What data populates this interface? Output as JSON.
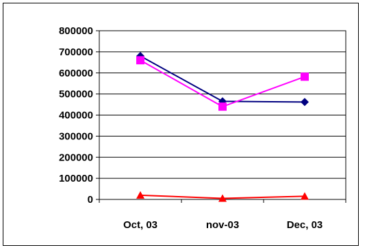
{
  "chart_data": {
    "type": "line",
    "categories": [
      "Oct, 03",
      "nov-03",
      "Dec, 03"
    ],
    "ylim": [
      0,
      800000
    ],
    "yticks": [
      0,
      100000,
      200000,
      300000,
      400000,
      500000,
      600000,
      700000,
      800000
    ],
    "ytick_labels": [
      "0",
      "100000",
      "200000",
      "300000",
      "400000",
      "500000",
      "600000",
      "700000",
      "800000"
    ],
    "grid": true,
    "legend": "none",
    "title": "",
    "xlabel": "",
    "ylabel": "",
    "series": [
      {
        "values": [
          680000,
          465000,
          462000
        ],
        "color": "#000080",
        "marker": "diamond"
      },
      {
        "values": [
          660000,
          440000,
          582000
        ],
        "color": "#FF00FF",
        "marker": "square"
      },
      {
        "values": [
          20000,
          5000,
          15000
        ],
        "color": "#FF0000",
        "marker": "triangle"
      }
    ]
  }
}
